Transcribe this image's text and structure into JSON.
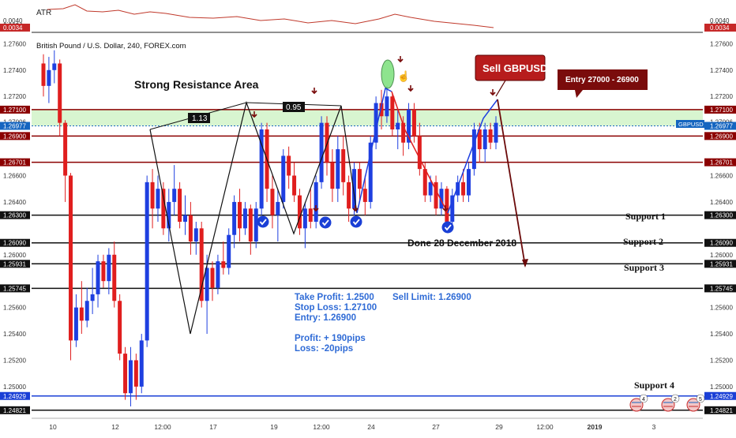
{
  "chart_data": {
    "type": "candlestick",
    "title": "British Pound / U.S. Dollar, 240, FOREX.com",
    "symbol_tag": "GBPUSD",
    "indicator": {
      "name": "ATR",
      "scale_labels": [
        "0.0040",
        "0.0034"
      ],
      "last_value_label": "0.0034"
    },
    "y_axis_ticks": [
      "1.27600",
      "1.27400",
      "1.27200",
      "1.27006",
      "1.26600",
      "1.26400",
      "1.26000",
      "1.25600",
      "1.25400",
      "1.25200",
      "1.25000"
    ],
    "y_axis_tick_values": [
      1.276,
      1.274,
      1.272,
      1.27006,
      1.266,
      1.264,
      1.26,
      1.256,
      1.254,
      1.252,
      1.25
    ],
    "ylim": [
      1.2476,
      1.2768
    ],
    "x_axis_ticks": [
      "10",
      "12",
      "12:00",
      "17",
      "19",
      "12:00",
      "24",
      "27",
      "29",
      "12:00",
      "2019",
      "3"
    ],
    "x_axis_tick_positions": [
      67,
      146,
      206,
      270,
      347,
      407,
      470,
      552,
      632,
      690,
      753,
      828
    ],
    "levels": [
      {
        "label": "1.27100",
        "value": 1.271,
        "color": "#8b0000"
      },
      {
        "label": "1.26977",
        "value": 1.26977,
        "color": "#1565c0"
      },
      {
        "label": "1.26900",
        "value": 1.269,
        "color": "#8b0000"
      },
      {
        "label": "1.26701",
        "value": 1.26701,
        "color": "#8b0000"
      },
      {
        "label": "1.26300",
        "value": 1.263,
        "color": "#111111"
      },
      {
        "label": "1.26090",
        "value": 1.2609,
        "color": "#111111"
      },
      {
        "label": "1.25931",
        "value": 1.25931,
        "color": "#111111"
      },
      {
        "label": "1.25745",
        "value": 1.25745,
        "color": "#111111"
      },
      {
        "label": "1.24929",
        "value": 1.24929,
        "color": "#1a3fd6"
      },
      {
        "label": "1.24821",
        "value": 1.24821,
        "color": "#111111"
      }
    ],
    "resistance_zone": [
      1.26977,
      1.271
    ],
    "candles": [
      [
        1.2745,
        1.2752,
        1.272,
        1.2728
      ],
      [
        1.2728,
        1.275,
        1.2715,
        1.274
      ],
      [
        1.274,
        1.2755,
        1.273,
        1.2745
      ],
      [
        1.2745,
        1.2748,
        1.269,
        1.27
      ],
      [
        1.27,
        1.2702,
        1.264,
        1.266
      ],
      [
        1.266,
        1.2662,
        1.252,
        1.2535
      ],
      [
        1.2535,
        1.257,
        1.253,
        1.256
      ],
      [
        1.256,
        1.258,
        1.254,
        1.255
      ],
      [
        1.255,
        1.2575,
        1.2545,
        1.2565
      ],
      [
        1.2565,
        1.259,
        1.2555,
        1.257
      ],
      [
        1.257,
        1.26,
        1.256,
        1.2595
      ],
      [
        1.2595,
        1.26,
        1.2575,
        1.258
      ],
      [
        1.258,
        1.2605,
        1.257,
        1.26
      ],
      [
        1.26,
        1.261,
        1.256,
        1.2565
      ],
      [
        1.2565,
        1.257,
        1.252,
        1.2525
      ],
      [
        1.2525,
        1.253,
        1.249,
        1.2495
      ],
      [
        1.2495,
        1.253,
        1.2485,
        1.252
      ],
      [
        1.252,
        1.2525,
        1.249,
        1.25
      ],
      [
        1.25,
        1.254,
        1.2495,
        1.2535
      ],
      [
        1.2535,
        1.266,
        1.253,
        1.2655
      ],
      [
        1.2655,
        1.2665,
        1.262,
        1.2635
      ],
      [
        1.2635,
        1.266,
        1.2625,
        1.265
      ],
      [
        1.265,
        1.2655,
        1.2615,
        1.262
      ],
      [
        1.262,
        1.265,
        1.261,
        1.264
      ],
      [
        1.264,
        1.2668,
        1.263,
        1.265
      ],
      [
        1.265,
        1.2655,
        1.262,
        1.2625
      ],
      [
        1.2625,
        1.2645,
        1.2615,
        1.263
      ],
      [
        1.263,
        1.264,
        1.26,
        1.261
      ],
      [
        1.261,
        1.2625,
        1.26,
        1.262
      ],
      [
        1.262,
        1.2625,
        1.256,
        1.2565
      ],
      [
        1.2565,
        1.26,
        1.254,
        1.259
      ],
      [
        1.259,
        1.2595,
        1.2565,
        1.2575
      ],
      [
        1.2575,
        1.26,
        1.257,
        1.2595
      ],
      [
        1.2595,
        1.261,
        1.2585,
        1.259
      ],
      [
        1.259,
        1.262,
        1.2585,
        1.2615
      ],
      [
        1.2615,
        1.2645,
        1.2605,
        1.264
      ],
      [
        1.264,
        1.265,
        1.261,
        1.262
      ],
      [
        1.262,
        1.264,
        1.2615,
        1.2635
      ],
      [
        1.2635,
        1.2638,
        1.26,
        1.261
      ],
      [
        1.261,
        1.264,
        1.2605,
        1.2635
      ],
      [
        1.2635,
        1.27,
        1.263,
        1.2695
      ],
      [
        1.2695,
        1.27,
        1.264,
        1.265
      ],
      [
        1.265,
        1.266,
        1.262,
        1.263
      ],
      [
        1.263,
        1.265,
        1.261,
        1.264
      ],
      [
        1.264,
        1.268,
        1.2635,
        1.2675
      ],
      [
        1.2675,
        1.2682,
        1.265,
        1.266
      ],
      [
        1.266,
        1.267,
        1.264,
        1.2645
      ],
      [
        1.2645,
        1.265,
        1.2615,
        1.262
      ],
      [
        1.262,
        1.264,
        1.2605,
        1.2635
      ],
      [
        1.2635,
        1.265,
        1.262,
        1.2625
      ],
      [
        1.2625,
        1.266,
        1.262,
        1.2655
      ],
      [
        1.2655,
        1.2705,
        1.265,
        1.27
      ],
      [
        1.27,
        1.2705,
        1.266,
        1.267
      ],
      [
        1.267,
        1.268,
        1.264,
        1.265
      ],
      [
        1.265,
        1.269,
        1.264,
        1.268
      ],
      [
        1.268,
        1.269,
        1.2645,
        1.2655
      ],
      [
        1.2655,
        1.266,
        1.2625,
        1.2635
      ],
      [
        1.2635,
        1.267,
        1.263,
        1.2665
      ],
      [
        1.2665,
        1.267,
        1.264,
        1.265
      ],
      [
        1.265,
        1.266,
        1.263,
        1.264
      ],
      [
        1.264,
        1.269,
        1.2635,
        1.2685
      ],
      [
        1.2685,
        1.272,
        1.268,
        1.2715
      ],
      [
        1.2715,
        1.2725,
        1.2695,
        1.2705
      ],
      [
        1.2705,
        1.2728,
        1.27,
        1.272
      ],
      [
        1.272,
        1.2722,
        1.269,
        1.2695
      ],
      [
        1.2695,
        1.271,
        1.268,
        1.27
      ],
      [
        1.27,
        1.2705,
        1.2675,
        1.2685
      ],
      [
        1.2685,
        1.2715,
        1.268,
        1.271
      ],
      [
        1.271,
        1.2715,
        1.2685,
        1.269
      ],
      [
        1.269,
        1.27,
        1.266,
        1.2665
      ],
      [
        1.2665,
        1.267,
        1.264,
        1.2645
      ],
      [
        1.2645,
        1.266,
        1.264,
        1.2655
      ],
      [
        1.2655,
        1.266,
        1.263,
        1.2635
      ],
      [
        1.2635,
        1.2655,
        1.263,
        1.265
      ],
      [
        1.265,
        1.2652,
        1.262,
        1.2625
      ],
      [
        1.2625,
        1.265,
        1.262,
        1.2645
      ],
      [
        1.2645,
        1.266,
        1.264,
        1.2655
      ],
      [
        1.2655,
        1.2665,
        1.264,
        1.2645
      ],
      [
        1.2645,
        1.267,
        1.264,
        1.2665
      ],
      [
        1.2665,
        1.27,
        1.266,
        1.2695
      ],
      [
        1.2695,
        1.27,
        1.267,
        1.268
      ],
      [
        1.268,
        1.27,
        1.267,
        1.2695
      ],
      [
        1.2695,
        1.27,
        1.268,
        1.2685
      ],
      [
        1.2685,
        1.2705,
        1.268,
        1.27
      ]
    ],
    "patterns": {
      "zigzag_black": [
        [
          190,
          164
        ],
        [
          241,
          423
        ],
        [
          312,
          130
        ],
        [
          372,
          296
        ],
        [
          432,
          134
        ],
        [
          452,
          270
        ]
      ],
      "resistance_line": [
        [
          190,
          164
        ],
        [
          312,
          130
        ],
        [
          432,
          134
        ]
      ],
      "blue_path": [
        [
          452,
          270
        ],
        [
          488,
          112
        ],
        [
          496,
          116
        ]
      ],
      "red_path": [
        [
          496,
          116
        ],
        [
          513,
          165
        ],
        [
          567,
          270
        ]
      ],
      "blue_path_2": [
        [
          567,
          270
        ],
        [
          612,
          150
        ],
        [
          630,
          126
        ]
      ],
      "forecast_path": [
        [
          630,
          126
        ],
        [
          665,
          337
        ]
      ],
      "check_positions": [
        [
          333,
          281
        ],
        [
          412,
          282
        ],
        [
          451,
          281
        ],
        [
          567,
          288
        ]
      ],
      "down_arrows": [
        [
          398,
          118
        ],
        [
          322,
          148
        ],
        [
          400,
          267
        ],
        [
          450,
          267
        ],
        [
          564,
          267
        ],
        [
          520,
          115
        ],
        [
          507,
          78
        ],
        [
          624,
          120
        ]
      ]
    },
    "labels": {
      "fib_1": "1.13",
      "fib_2": "0.95",
      "strong_resistance": "Strong Resistance Area",
      "sell_button": "Sell GBPUSD",
      "entry_box": "Entry 27000 - 26900",
      "done_text": "Done 28 December 2018",
      "support_1": "Support 1",
      "support_2": "Support 2",
      "support_3": "Support 3",
      "support_4": "Support 4"
    },
    "trade_text": {
      "tp": "Take Profit: 1.2500",
      "sell_limit": "Sell Limit: 1.26900",
      "sl": "Stop Loss: 1.27100",
      "entry": "Entry: 1.26900",
      "profit": "Profit: + 190pips",
      "loss": "Loss: -20pips"
    },
    "legend_flag_counts": [
      "4",
      "2",
      "5"
    ],
    "colors": {
      "up": "#1e3fe0",
      "down": "#e01e1e",
      "zone": "#d8f5d0",
      "sell_box": "#b71c1c",
      "entry_box": "#7a0c0c",
      "trade_text": "#2f6bd6",
      "forecast": "#6b0a0a"
    }
  }
}
